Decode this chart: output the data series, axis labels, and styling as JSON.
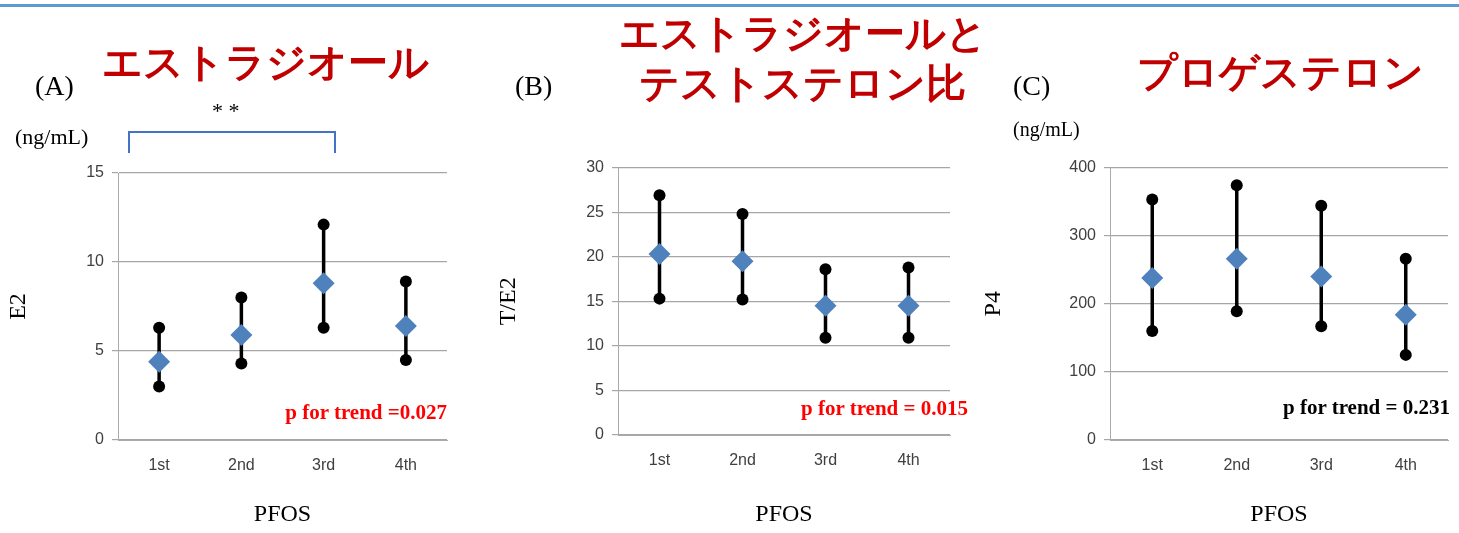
{
  "chart_data": [
    {
      "type": "scatter",
      "title": "エストラジオール",
      "xlabel": "PFOS",
      "ylabel": "E2",
      "categories": [
        "1st",
        "2nd",
        "3rd",
        "4th"
      ],
      "series": [
        {
          "color": "#4f81bd",
          "values": [
            4.4,
            5.9,
            8.8,
            6.4
          ]
        },
        {
          "type": "line",
          "marker": "circle",
          "color": "#000000",
          "x": [
            "1st",
            "1st"
          ],
          "values": [
            3.0,
            6.3
          ]
        },
        {
          "type": "line",
          "marker": "circle",
          "color": "#000000",
          "x": [
            "2nd",
            "2nd"
          ],
          "values": [
            4.3,
            8.0
          ]
        },
        {
          "type": "line",
          "marker": "circle",
          "color": "#000000",
          "x": [
            "3rd",
            "3rd"
          ],
          "values": [
            6.3,
            12.1
          ]
        },
        {
          "type": "line",
          "marker": "circle",
          "color": "#000000",
          "x": [
            "4th",
            "4th"
          ],
          "values": [
            4.5,
            8.9
          ]
        }
      ],
      "ylim": [
        0,
        15
      ],
      "yticks": [
        0,
        5,
        10,
        15
      ],
      "grid": "y",
      "marker": "diamond",
      "annotations": [
        "(A)",
        "(ng/mL)",
        "* *",
        "p for trend =0.027"
      ]
    },
    {
      "type": "scatter",
      "title": "エストラジオールとテストステロン比",
      "xlabel": "PFOS",
      "ylabel": "T/E2",
      "categories": [
        "1st",
        "2nd",
        "3rd",
        "4th"
      ],
      "series": [
        {
          "color": "#4f81bd",
          "values": [
            20.3,
            19.5,
            14.5,
            14.5
          ]
        },
        {
          "type": "line",
          "marker": "circle",
          "color": "#000000",
          "x": [
            "1st",
            "1st"
          ],
          "values": [
            15.3,
            26.9
          ]
        },
        {
          "type": "line",
          "marker": "circle",
          "color": "#000000",
          "x": [
            "2nd",
            "2nd"
          ],
          "values": [
            15.2,
            24.8
          ]
        },
        {
          "type": "line",
          "marker": "circle",
          "color": "#000000",
          "x": [
            "3rd",
            "3rd"
          ],
          "values": [
            10.9,
            18.6
          ]
        },
        {
          "type": "line",
          "marker": "circle",
          "color": "#000000",
          "x": [
            "4th",
            "4th"
          ],
          "values": [
            10.9,
            18.8
          ]
        }
      ],
      "ylim": [
        0,
        30
      ],
      "yticks": [
        0,
        5,
        10,
        15,
        20,
        25,
        30
      ],
      "grid": "y",
      "marker": "diamond",
      "annotations": [
        "(B)",
        "p for trend = 0.015"
      ]
    },
    {
      "type": "scatter",
      "title": "プロゲステロン",
      "xlabel": "PFOS",
      "ylabel": "P4",
      "categories": [
        "1st",
        "2nd",
        "3rd",
        "4th"
      ],
      "series": [
        {
          "color": "#4f81bd",
          "values": [
            238,
            266,
            240,
            184
          ]
        },
        {
          "type": "line",
          "marker": "circle",
          "color": "#000000",
          "x": [
            "1st",
            "1st"
          ],
          "values": [
            160,
            353
          ]
        },
        {
          "type": "line",
          "marker": "circle",
          "color": "#000000",
          "x": [
            "2nd",
            "2nd"
          ],
          "values": [
            189,
            374
          ]
        },
        {
          "type": "line",
          "marker": "circle",
          "color": "#000000",
          "x": [
            "3rd",
            "3rd"
          ],
          "values": [
            167,
            344
          ]
        },
        {
          "type": "line",
          "marker": "circle",
          "color": "#000000",
          "x": [
            "4th",
            "4th"
          ],
          "values": [
            125,
            266
          ]
        }
      ],
      "ylim": [
        0,
        400
      ],
      "yticks": [
        0,
        100,
        200,
        300,
        400
      ],
      "grid": "y",
      "marker": "diamond",
      "annotations": [
        "(C)",
        "(ng/mL)",
        "p for trend = 0.231"
      ]
    }
  ]
}
